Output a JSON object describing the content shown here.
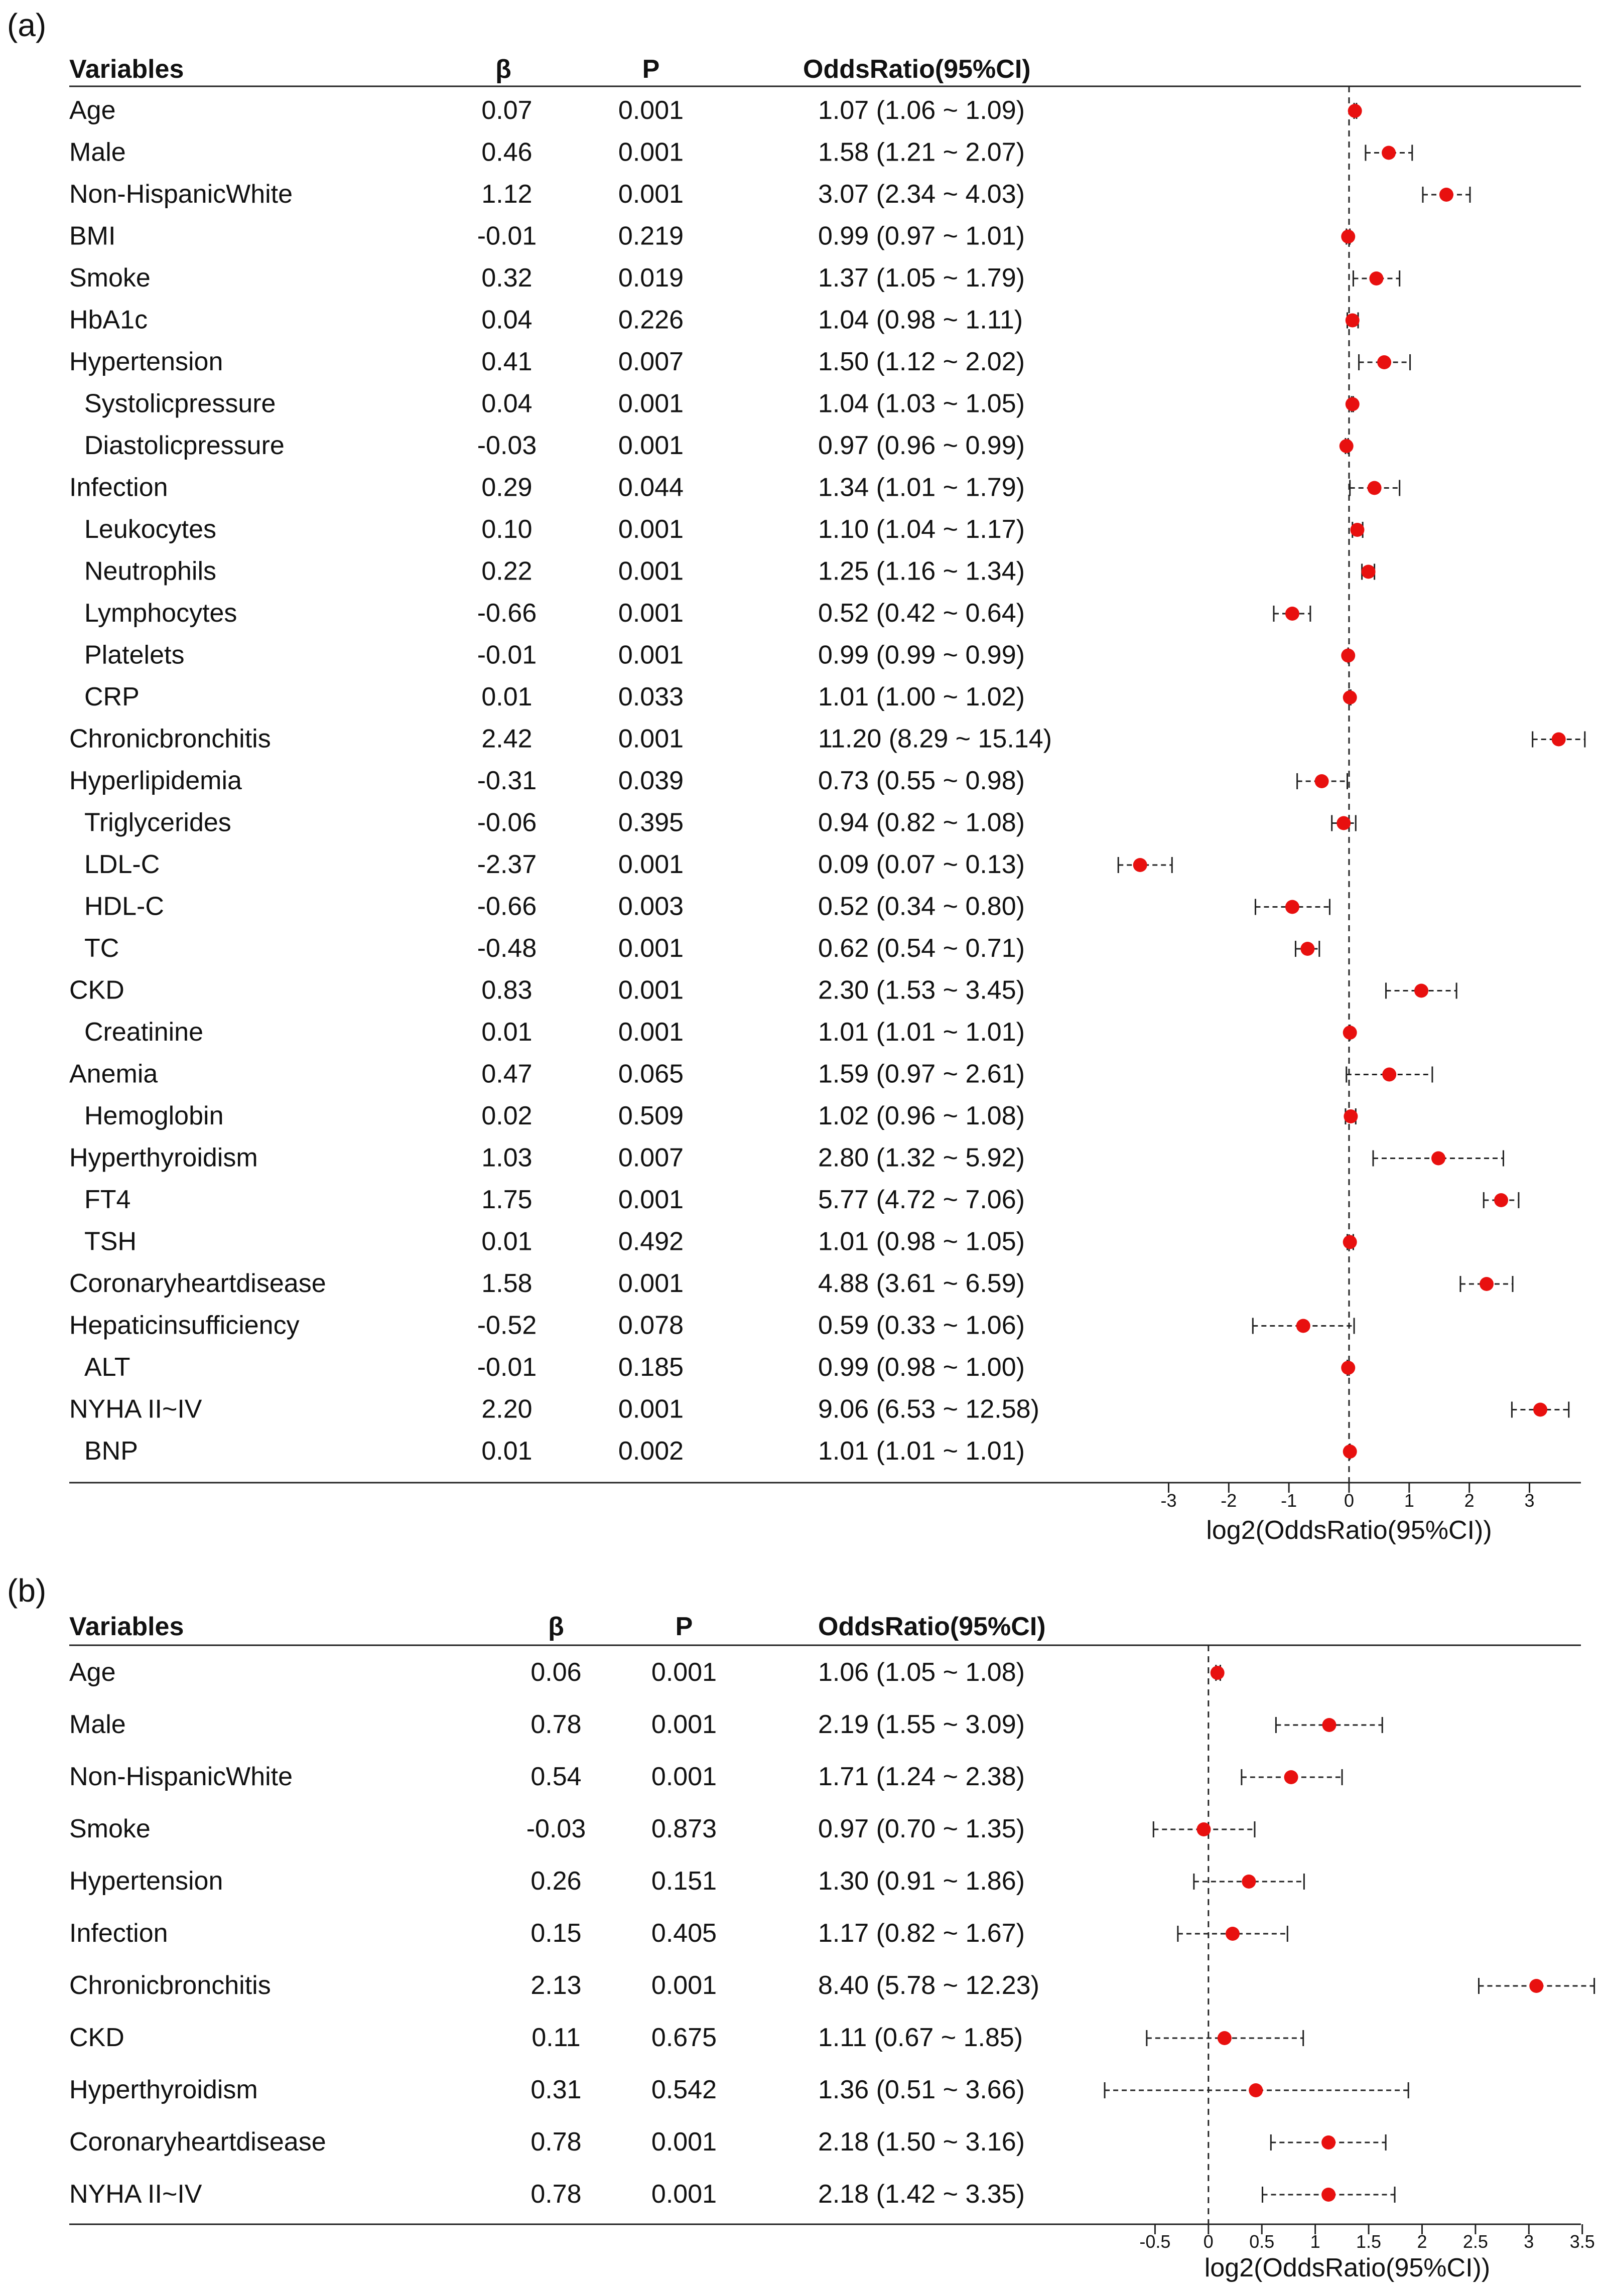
{
  "chart_data": [
    {
      "panel_label": "(a)",
      "type": "forest",
      "columns": {
        "variables": "Variables",
        "beta": "β",
        "p": "P",
        "or": "OddsRatio(95%CI)"
      },
      "xlabel": "log2(OddsRatio(95%CI))",
      "xlim": [
        -3.8,
        3.8
      ],
      "ticks": [
        -3,
        -2,
        -1,
        0,
        1,
        2,
        3
      ],
      "tick_labels": [
        "-3",
        "-2",
        "-1",
        "0",
        "1",
        "2",
        "3"
      ],
      "reference_line": 0,
      "rows": [
        {
          "label": "Age",
          "indent": 0,
          "beta": "0.07",
          "p": "0.001",
          "or_text": "1.07 (1.06 ~ 1.09)",
          "or": 1.07,
          "lo": 1.06,
          "hi": 1.09
        },
        {
          "label": "Male",
          "indent": 0,
          "beta": "0.46",
          "p": "0.001",
          "or_text": "1.58 (1.21 ~ 2.07)",
          "or": 1.58,
          "lo": 1.21,
          "hi": 2.07
        },
        {
          "label": "Non-HispanicWhite",
          "indent": 0,
          "beta": "1.12",
          "p": "0.001",
          "or_text": "3.07 (2.34 ~ 4.03)",
          "or": 3.07,
          "lo": 2.34,
          "hi": 4.03
        },
        {
          "label": "BMI",
          "indent": 0,
          "beta": "-0.01",
          "p": "0.219",
          "or_text": "0.99 (0.97 ~ 1.01)",
          "or": 0.99,
          "lo": 0.97,
          "hi": 1.01
        },
        {
          "label": "Smoke",
          "indent": 0,
          "beta": "0.32",
          "p": "0.019",
          "or_text": "1.37 (1.05 ~ 1.79)",
          "or": 1.37,
          "lo": 1.05,
          "hi": 1.79
        },
        {
          "label": "HbA1c",
          "indent": 0,
          "beta": "0.04",
          "p": "0.226",
          "or_text": "1.04 (0.98 ~ 1.11)",
          "or": 1.04,
          "lo": 0.98,
          "hi": 1.11
        },
        {
          "label": "Hypertension",
          "indent": 0,
          "beta": "0.41",
          "p": "0.007",
          "or_text": "1.50 (1.12 ~ 2.02)",
          "or": 1.5,
          "lo": 1.12,
          "hi": 2.02
        },
        {
          "label": "Systolicpressure",
          "indent": 1,
          "beta": "0.04",
          "p": "0.001",
          "or_text": "1.04 (1.03 ~ 1.05)",
          "or": 1.04,
          "lo": 1.03,
          "hi": 1.05
        },
        {
          "label": "Diastolicpressure",
          "indent": 1,
          "beta": "-0.03",
          "p": "0.001",
          "or_text": "0.97 (0.96 ~ 0.99)",
          "or": 0.97,
          "lo": 0.96,
          "hi": 0.99
        },
        {
          "label": "Infection",
          "indent": 0,
          "beta": "0.29",
          "p": "0.044",
          "or_text": "1.34 (1.01 ~ 1.79)",
          "or": 1.34,
          "lo": 1.01,
          "hi": 1.79
        },
        {
          "label": "Leukocytes",
          "indent": 1,
          "beta": "0.10",
          "p": "0.001",
          "or_text": "1.10 (1.04 ~ 1.17)",
          "or": 1.1,
          "lo": 1.04,
          "hi": 1.17
        },
        {
          "label": "Neutrophils",
          "indent": 1,
          "beta": "0.22",
          "p": "0.001",
          "or_text": "1.25 (1.16 ~ 1.34)",
          "or": 1.25,
          "lo": 1.16,
          "hi": 1.34
        },
        {
          "label": "Lymphocytes",
          "indent": 1,
          "beta": "-0.66",
          "p": "0.001",
          "or_text": "0.52 (0.42 ~ 0.64)",
          "or": 0.52,
          "lo": 0.42,
          "hi": 0.64
        },
        {
          "label": "Platelets",
          "indent": 1,
          "beta": "-0.01",
          "p": "0.001",
          "or_text": "0.99 (0.99 ~ 0.99)",
          "or": 0.99,
          "lo": 0.99,
          "hi": 0.99
        },
        {
          "label": "CRP",
          "indent": 1,
          "beta": "0.01",
          "p": "0.033",
          "or_text": "1.01 (1.00 ~ 1.02)",
          "or": 1.01,
          "lo": 1.0,
          "hi": 1.02
        },
        {
          "label": "Chronicbronchitis",
          "indent": 0,
          "beta": "2.42",
          "p": "0.001",
          "or_text": "11.20 (8.29 ~ 15.14)",
          "or": 11.2,
          "lo": 8.29,
          "hi": 15.14
        },
        {
          "label": "Hyperlipidemia",
          "indent": 0,
          "beta": "-0.31",
          "p": "0.039",
          "or_text": "0.73 (0.55 ~ 0.98)",
          "or": 0.73,
          "lo": 0.55,
          "hi": 0.98
        },
        {
          "label": "Triglycerides",
          "indent": 1,
          "beta": "-0.06",
          "p": "0.395",
          "or_text": "0.94 (0.82 ~ 1.08)",
          "or": 0.94,
          "lo": 0.82,
          "hi": 1.08
        },
        {
          "label": "LDL-C",
          "indent": 1,
          "beta": "-2.37",
          "p": "0.001",
          "or_text": "0.09 (0.07 ~ 0.13)",
          "or": 0.09,
          "lo": 0.07,
          "hi": 0.13
        },
        {
          "label": "HDL-C",
          "indent": 1,
          "beta": "-0.66",
          "p": "0.003",
          "or_text": "0.52 (0.34 ~ 0.80)",
          "or": 0.52,
          "lo": 0.34,
          "hi": 0.8
        },
        {
          "label": "TC",
          "indent": 1,
          "beta": "-0.48",
          "p": "0.001",
          "or_text": "0.62 (0.54 ~ 0.71)",
          "or": 0.62,
          "lo": 0.54,
          "hi": 0.71
        },
        {
          "label": "CKD",
          "indent": 0,
          "beta": "0.83",
          "p": "0.001",
          "or_text": "2.30 (1.53 ~ 3.45)",
          "or": 2.3,
          "lo": 1.53,
          "hi": 3.45
        },
        {
          "label": "Creatinine",
          "indent": 1,
          "beta": "0.01",
          "p": "0.001",
          "or_text": "1.01 (1.01 ~ 1.01)",
          "or": 1.01,
          "lo": 1.01,
          "hi": 1.01
        },
        {
          "label": "Anemia",
          "indent": 0,
          "beta": "0.47",
          "p": "0.065",
          "or_text": "1.59 (0.97 ~ 2.61)",
          "or": 1.59,
          "lo": 0.97,
          "hi": 2.61
        },
        {
          "label": "Hemoglobin",
          "indent": 1,
          "beta": "0.02",
          "p": "0.509",
          "or_text": "1.02 (0.96 ~ 1.08)",
          "or": 1.02,
          "lo": 0.96,
          "hi": 1.08
        },
        {
          "label": "Hyperthyroidism",
          "indent": 0,
          "beta": "1.03",
          "p": "0.007",
          "or_text": "2.80 (1.32 ~ 5.92)",
          "or": 2.8,
          "lo": 1.32,
          "hi": 5.92
        },
        {
          "label": "FT4",
          "indent": 1,
          "beta": "1.75",
          "p": "0.001",
          "or_text": "5.77 (4.72 ~ 7.06)",
          "or": 5.77,
          "lo": 4.72,
          "hi": 7.06
        },
        {
          "label": "TSH",
          "indent": 1,
          "beta": "0.01",
          "p": "0.492",
          "or_text": "1.01 (0.98 ~ 1.05)",
          "or": 1.01,
          "lo": 0.98,
          "hi": 1.05
        },
        {
          "label": "Coronaryheartdisease",
          "indent": 0,
          "beta": "1.58",
          "p": "0.001",
          "or_text": "4.88 (3.61 ~ 6.59)",
          "or": 4.88,
          "lo": 3.61,
          "hi": 6.59
        },
        {
          "label": "Hepaticinsufficiency",
          "indent": 0,
          "beta": "-0.52",
          "p": "0.078",
          "or_text": "0.59 (0.33 ~ 1.06)",
          "or": 0.59,
          "lo": 0.33,
          "hi": 1.06
        },
        {
          "label": "ALT",
          "indent": 1,
          "beta": "-0.01",
          "p": "0.185",
          "or_text": "0.99 (0.98 ~ 1.00)",
          "or": 0.99,
          "lo": 0.98,
          "hi": 1.0
        },
        {
          "label": "NYHA II~IV",
          "indent": 0,
          "beta": "2.20",
          "p": "0.001",
          "or_text": "9.06 (6.53 ~ 12.58)",
          "or": 9.06,
          "lo": 6.53,
          "hi": 12.58
        },
        {
          "label": "BNP",
          "indent": 1,
          "beta": "0.01",
          "p": "0.002",
          "or_text": "1.01 (1.01 ~ 1.01)",
          "or": 1.01,
          "lo": 1.01,
          "hi": 1.01
        }
      ]
    },
    {
      "panel_label": "(b)",
      "type": "forest",
      "columns": {
        "variables": "Variables",
        "beta": "β",
        "p": "P",
        "or": "OddsRatio(95%CI)"
      },
      "xlabel": "log2(OddsRatio(95%CI))",
      "xlim": [
        -1.0,
        3.6
      ],
      "ticks": [
        -0.5,
        0,
        0.5,
        1,
        1.5,
        2,
        2.5,
        3,
        3.5
      ],
      "tick_labels": [
        "-0.5",
        "0",
        "0.5",
        "1",
        "1.5",
        "2",
        "2.5",
        "3",
        "3.5"
      ],
      "reference_line": 0,
      "rows": [
        {
          "label": "Age",
          "indent": 0,
          "beta": "0.06",
          "p": "0.001",
          "or_text": "1.06 (1.05 ~ 1.08)",
          "or": 1.06,
          "lo": 1.05,
          "hi": 1.08
        },
        {
          "label": "Male",
          "indent": 0,
          "beta": "0.78",
          "p": "0.001",
          "or_text": "2.19 (1.55 ~ 3.09)",
          "or": 2.19,
          "lo": 1.55,
          "hi": 3.09
        },
        {
          "label": "Non-HispanicWhite",
          "indent": 0,
          "beta": "0.54",
          "p": "0.001",
          "or_text": "1.71 (1.24 ~ 2.38)",
          "or": 1.71,
          "lo": 1.24,
          "hi": 2.38
        },
        {
          "label": "Smoke",
          "indent": 0,
          "beta": "-0.03",
          "p": "0.873",
          "or_text": "0.97 (0.70 ~ 1.35)",
          "or": 0.97,
          "lo": 0.7,
          "hi": 1.35
        },
        {
          "label": "Hypertension",
          "indent": 0,
          "beta": "0.26",
          "p": "0.151",
          "or_text": "1.30 (0.91 ~ 1.86)",
          "or": 1.3,
          "lo": 0.91,
          "hi": 1.86
        },
        {
          "label": "Infection",
          "indent": 0,
          "beta": "0.15",
          "p": "0.405",
          "or_text": "1.17 (0.82 ~ 1.67)",
          "or": 1.17,
          "lo": 0.82,
          "hi": 1.67
        },
        {
          "label": "Chronicbronchitis",
          "indent": 0,
          "beta": "2.13",
          "p": "0.001",
          "or_text": "8.40 (5.78 ~ 12.23)",
          "or": 8.4,
          "lo": 5.78,
          "hi": 12.23
        },
        {
          "label": "CKD",
          "indent": 0,
          "beta": "0.11",
          "p": "0.675",
          "or_text": "1.11 (0.67 ~ 1.85)",
          "or": 1.11,
          "lo": 0.67,
          "hi": 1.85
        },
        {
          "label": "Hyperthyroidism",
          "indent": 0,
          "beta": "0.31",
          "p": "0.542",
          "or_text": "1.36 (0.51 ~ 3.66)",
          "or": 1.36,
          "lo": 0.51,
          "hi": 3.66
        },
        {
          "label": "Coronaryheartdisease",
          "indent": 0,
          "beta": "0.78",
          "p": "0.001",
          "or_text": "2.18 (1.50 ~ 3.16)",
          "or": 2.18,
          "lo": 1.5,
          "hi": 3.16
        },
        {
          "label": "NYHA II~IV",
          "indent": 0,
          "beta": "0.78",
          "p": "0.001",
          "or_text": "2.18 (1.42 ~ 3.35)",
          "or": 2.18,
          "lo": 1.42,
          "hi": 3.35
        }
      ]
    }
  ],
  "colors": {
    "point": "#e8100f",
    "text": "#111111",
    "line": "#222222"
  }
}
